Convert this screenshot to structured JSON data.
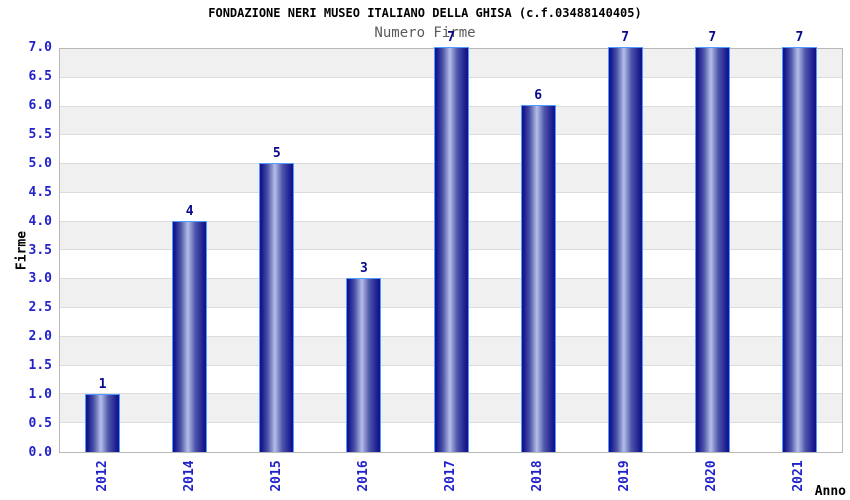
{
  "chart_data": {
    "type": "bar",
    "title": "FONDAZIONE NERI MUSEO ITALIANO DELLA GHISA (c.f.03488140405)",
    "subtitle": "Numero Firme",
    "xlabel": "Anno",
    "ylabel": "Firme",
    "categories": [
      "2012",
      "2014",
      "2015",
      "2016",
      "2017",
      "2018",
      "2019",
      "2020",
      "2021"
    ],
    "values": [
      1,
      4,
      5,
      3,
      7,
      6,
      7,
      7,
      7
    ],
    "data_labels": [
      "1",
      "4",
      "5",
      "3",
      "7",
      "6",
      "7",
      "7",
      "7"
    ],
    "ylim": [
      0,
      7
    ],
    "ytick_step": 0.5,
    "ytick_labels": [
      "0.0",
      "0.5",
      "1.0",
      "1.5",
      "2.0",
      "2.5",
      "3.0",
      "3.5",
      "4.0",
      "4.5",
      "5.0",
      "5.5",
      "6.0",
      "6.5",
      "7.0"
    ],
    "grid": "horizontal-stripes-alternating",
    "legend": "none",
    "xtick_rotation_degrees": 90,
    "colors": {
      "tick_label": "#2222cc",
      "bar_label": "#08088a",
      "bar_border": "#4f9aff",
      "bar_dark": "#14148c",
      "bar_mid": "#4c55a8",
      "bar_light": "#b6bde8",
      "stripe_a": "#f0f0f0",
      "stripe_b": "#ffffff",
      "grid_line": "#dcdcdc",
      "axis_line": "#b8b8b8",
      "title": "#000000",
      "subtitle": "#5a5a5a",
      "background": "#ffffff"
    }
  }
}
